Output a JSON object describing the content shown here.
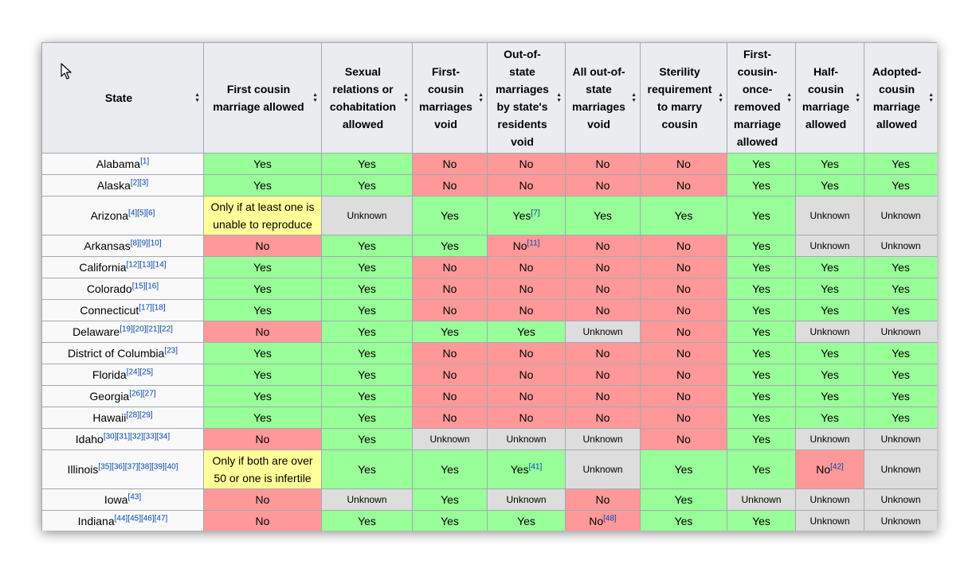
{
  "headers": [
    "State",
    "First cousin marriage allowed",
    "Sexual relations or cohabitation allowed",
    "First-cousin marriages void",
    "Out-of-state marriages by state's residents void",
    "All out-of-state marriages void",
    "Sterility requirement to marry cousin",
    "First-cousin-once-removed marriage allowed",
    "Half-cousin marriage allowed",
    "Adopted-cousin marriage allowed"
  ],
  "rows": [
    {
      "state": "Alabama",
      "refs": "[1]",
      "cells": [
        {
          "v": "Yes",
          "c": "yes"
        },
        {
          "v": "Yes",
          "c": "yes"
        },
        {
          "v": "No",
          "c": "no"
        },
        {
          "v": "No",
          "c": "no"
        },
        {
          "v": "No",
          "c": "no"
        },
        {
          "v": "No",
          "c": "no"
        },
        {
          "v": "Yes",
          "c": "yes"
        },
        {
          "v": "Yes",
          "c": "yes"
        },
        {
          "v": "Yes",
          "c": "yes"
        }
      ]
    },
    {
      "state": "Alaska",
      "refs": "[2][3]",
      "cells": [
        {
          "v": "Yes",
          "c": "yes"
        },
        {
          "v": "Yes",
          "c": "yes"
        },
        {
          "v": "No",
          "c": "no"
        },
        {
          "v": "No",
          "c": "no"
        },
        {
          "v": "No",
          "c": "no"
        },
        {
          "v": "No",
          "c": "no"
        },
        {
          "v": "Yes",
          "c": "yes"
        },
        {
          "v": "Yes",
          "c": "yes"
        },
        {
          "v": "Yes",
          "c": "yes"
        }
      ]
    },
    {
      "state": "Arizona",
      "refs": "[4][5][6]",
      "tall": true,
      "cells": [
        {
          "v": "Only if at least one is unable to reproduce",
          "c": "note"
        },
        {
          "v": "Unknown",
          "c": "unk"
        },
        {
          "v": "Yes",
          "c": "yes"
        },
        {
          "v": "Yes",
          "c": "yes",
          "ref": "[7]"
        },
        {
          "v": "Yes",
          "c": "yes"
        },
        {
          "v": "Yes",
          "c": "yes"
        },
        {
          "v": "Yes",
          "c": "yes"
        },
        {
          "v": "Unknown",
          "c": "unk"
        },
        {
          "v": "Unknown",
          "c": "unk"
        }
      ]
    },
    {
      "state": "Arkansas",
      "refs": "[8][9][10]",
      "cells": [
        {
          "v": "No",
          "c": "no"
        },
        {
          "v": "Yes",
          "c": "yes"
        },
        {
          "v": "Yes",
          "c": "yes"
        },
        {
          "v": "No",
          "c": "no",
          "ref": "[11]"
        },
        {
          "v": "No",
          "c": "no"
        },
        {
          "v": "No",
          "c": "no"
        },
        {
          "v": "Yes",
          "c": "yes"
        },
        {
          "v": "Unknown",
          "c": "unk"
        },
        {
          "v": "Unknown",
          "c": "unk"
        }
      ]
    },
    {
      "state": "California",
      "refs": "[12][13][14]",
      "cells": [
        {
          "v": "Yes",
          "c": "yes"
        },
        {
          "v": "Yes",
          "c": "yes"
        },
        {
          "v": "No",
          "c": "no"
        },
        {
          "v": "No",
          "c": "no"
        },
        {
          "v": "No",
          "c": "no"
        },
        {
          "v": "No",
          "c": "no"
        },
        {
          "v": "Yes",
          "c": "yes"
        },
        {
          "v": "Yes",
          "c": "yes"
        },
        {
          "v": "Yes",
          "c": "yes"
        }
      ]
    },
    {
      "state": "Colorado",
      "refs": "[15][16]",
      "cells": [
        {
          "v": "Yes",
          "c": "yes"
        },
        {
          "v": "Yes",
          "c": "yes"
        },
        {
          "v": "No",
          "c": "no"
        },
        {
          "v": "No",
          "c": "no"
        },
        {
          "v": "No",
          "c": "no"
        },
        {
          "v": "No",
          "c": "no"
        },
        {
          "v": "Yes",
          "c": "yes"
        },
        {
          "v": "Yes",
          "c": "yes"
        },
        {
          "v": "Yes",
          "c": "yes"
        }
      ]
    },
    {
      "state": "Connecticut",
      "refs": "[17][18]",
      "cells": [
        {
          "v": "Yes",
          "c": "yes"
        },
        {
          "v": "Yes",
          "c": "yes"
        },
        {
          "v": "No",
          "c": "no"
        },
        {
          "v": "No",
          "c": "no"
        },
        {
          "v": "No",
          "c": "no"
        },
        {
          "v": "No",
          "c": "no"
        },
        {
          "v": "Yes",
          "c": "yes"
        },
        {
          "v": "Yes",
          "c": "yes"
        },
        {
          "v": "Yes",
          "c": "yes"
        }
      ]
    },
    {
      "state": "Delaware",
      "refs": "[19][20][21][22]",
      "cells": [
        {
          "v": "No",
          "c": "no"
        },
        {
          "v": "Yes",
          "c": "yes"
        },
        {
          "v": "Yes",
          "c": "yes"
        },
        {
          "v": "Yes",
          "c": "yes"
        },
        {
          "v": "Unknown",
          "c": "unk"
        },
        {
          "v": "No",
          "c": "no"
        },
        {
          "v": "Yes",
          "c": "yes"
        },
        {
          "v": "Unknown",
          "c": "unk"
        },
        {
          "v": "Unknown",
          "c": "unk"
        }
      ]
    },
    {
      "state": "District of Columbia",
      "refs": "[23]",
      "cells": [
        {
          "v": "Yes",
          "c": "yes"
        },
        {
          "v": "Yes",
          "c": "yes"
        },
        {
          "v": "No",
          "c": "no"
        },
        {
          "v": "No",
          "c": "no"
        },
        {
          "v": "No",
          "c": "no"
        },
        {
          "v": "No",
          "c": "no"
        },
        {
          "v": "Yes",
          "c": "yes"
        },
        {
          "v": "Yes",
          "c": "yes"
        },
        {
          "v": "Yes",
          "c": "yes"
        }
      ]
    },
    {
      "state": "Florida",
      "refs": "[24][25]",
      "cells": [
        {
          "v": "Yes",
          "c": "yes"
        },
        {
          "v": "Yes",
          "c": "yes"
        },
        {
          "v": "No",
          "c": "no"
        },
        {
          "v": "No",
          "c": "no"
        },
        {
          "v": "No",
          "c": "no"
        },
        {
          "v": "No",
          "c": "no"
        },
        {
          "v": "Yes",
          "c": "yes"
        },
        {
          "v": "Yes",
          "c": "yes"
        },
        {
          "v": "Yes",
          "c": "yes"
        }
      ]
    },
    {
      "state": "Georgia",
      "refs": "[26][27]",
      "cells": [
        {
          "v": "Yes",
          "c": "yes"
        },
        {
          "v": "Yes",
          "c": "yes"
        },
        {
          "v": "No",
          "c": "no"
        },
        {
          "v": "No",
          "c": "no"
        },
        {
          "v": "No",
          "c": "no"
        },
        {
          "v": "No",
          "c": "no"
        },
        {
          "v": "Yes",
          "c": "yes"
        },
        {
          "v": "Yes",
          "c": "yes"
        },
        {
          "v": "Yes",
          "c": "yes"
        }
      ]
    },
    {
      "state": "Hawaii",
      "refs": "[28][29]",
      "cells": [
        {
          "v": "Yes",
          "c": "yes"
        },
        {
          "v": "Yes",
          "c": "yes"
        },
        {
          "v": "No",
          "c": "no"
        },
        {
          "v": "No",
          "c": "no"
        },
        {
          "v": "No",
          "c": "no"
        },
        {
          "v": "No",
          "c": "no"
        },
        {
          "v": "Yes",
          "c": "yes"
        },
        {
          "v": "Yes",
          "c": "yes"
        },
        {
          "v": "Yes",
          "c": "yes"
        }
      ]
    },
    {
      "state": "Idaho",
      "refs": "[30][31][32][33][34]",
      "cells": [
        {
          "v": "No",
          "c": "no"
        },
        {
          "v": "Yes",
          "c": "yes"
        },
        {
          "v": "Unknown",
          "c": "unk"
        },
        {
          "v": "Unknown",
          "c": "unk"
        },
        {
          "v": "Unknown",
          "c": "unk"
        },
        {
          "v": "No",
          "c": "no"
        },
        {
          "v": "Yes",
          "c": "yes"
        },
        {
          "v": "Unknown",
          "c": "unk"
        },
        {
          "v": "Unknown",
          "c": "unk"
        }
      ]
    },
    {
      "state": "Illinois",
      "refs": "[35][36][37][38][39][40]",
      "tall": true,
      "cells": [
        {
          "v": "Only if both are over 50 or one is infertile",
          "c": "note"
        },
        {
          "v": "Yes",
          "c": "yes"
        },
        {
          "v": "Yes",
          "c": "yes"
        },
        {
          "v": "Yes",
          "c": "yes",
          "ref": "[41]"
        },
        {
          "v": "Unknown",
          "c": "unk"
        },
        {
          "v": "Yes",
          "c": "yes"
        },
        {
          "v": "Yes",
          "c": "yes"
        },
        {
          "v": "No",
          "c": "no",
          "ref": "[42]"
        },
        {
          "v": "Unknown",
          "c": "unk"
        }
      ]
    },
    {
      "state": "Iowa",
      "refs": "[43]",
      "cells": [
        {
          "v": "No",
          "c": "no"
        },
        {
          "v": "Unknown",
          "c": "unk"
        },
        {
          "v": "Yes",
          "c": "yes"
        },
        {
          "v": "Unknown",
          "c": "unk"
        },
        {
          "v": "No",
          "c": "no"
        },
        {
          "v": "Yes",
          "c": "yes"
        },
        {
          "v": "Unknown",
          "c": "unk"
        },
        {
          "v": "Unknown",
          "c": "unk"
        },
        {
          "v": "Unknown",
          "c": "unk"
        }
      ]
    },
    {
      "state": "Indiana",
      "refs": "[44][45][46][47]",
      "cells": [
        {
          "v": "No",
          "c": "no"
        },
        {
          "v": "Yes",
          "c": "yes"
        },
        {
          "v": "Yes",
          "c": "yes"
        },
        {
          "v": "Yes",
          "c": "yes"
        },
        {
          "v": "No",
          "c": "no",
          "ref": "[48]"
        },
        {
          "v": "Yes",
          "c": "yes"
        },
        {
          "v": "Yes",
          "c": "yes"
        },
        {
          "v": "Unknown",
          "c": "unk"
        },
        {
          "v": "Unknown",
          "c": "unk"
        }
      ]
    }
  ],
  "icons": {
    "sort": "sort-arrows-icon",
    "cursor": "mouse-pointer-icon"
  },
  "colors": {
    "yes": "#99ff99",
    "no": "#ff9999",
    "unknown": "#dddddd",
    "conditional": "#ffff99"
  }
}
